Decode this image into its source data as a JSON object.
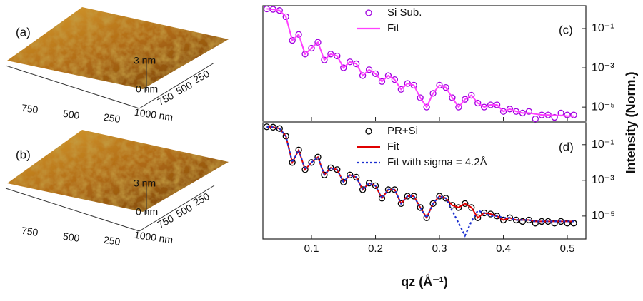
{
  "afm_panels": [
    {
      "label": "(a)",
      "z_ticks": [
        "3 nm",
        "0 nm"
      ],
      "x_ticks": [
        "750",
        "500",
        "250",
        "1000 nm"
      ],
      "y_ticks": [
        "750",
        "500",
        "250"
      ]
    },
    {
      "label": "(b)",
      "z_ticks": [
        "3 nm",
        "0 nm"
      ],
      "x_ticks": [
        "750",
        "500",
        "250",
        "1000 nm"
      ],
      "y_ticks": [
        "750",
        "500",
        "250"
      ]
    }
  ],
  "figure": {
    "x_label": "qz (Å⁻¹)",
    "y_label": "Intensity (Norm.)"
  },
  "chart_data": [
    {
      "type": "scatter",
      "panel_label": "(c)",
      "log_y": true,
      "legend": "upper center",
      "x_tick_labels": false,
      "x": [
        0.03,
        0.04,
        0.05,
        0.06,
        0.07,
        0.08,
        0.09,
        0.1,
        0.11,
        0.12,
        0.13,
        0.14,
        0.15,
        0.16,
        0.17,
        0.18,
        0.19,
        0.2,
        0.21,
        0.22,
        0.23,
        0.24,
        0.25,
        0.26,
        0.27,
        0.28,
        0.29,
        0.3,
        0.31,
        0.32,
        0.33,
        0.34,
        0.35,
        0.36,
        0.37,
        0.38,
        0.39,
        0.4,
        0.41,
        0.42,
        0.43,
        0.44,
        0.45,
        0.46,
        0.47,
        0.48,
        0.49,
        0.5,
        0.51
      ],
      "series": [
        {
          "name": "Si Sub.",
          "color": "#a000e0",
          "style": "markers",
          "values": [
            1,
            0.95,
            0.83,
            0.4,
            0.025,
            0.05,
            0.005,
            0.01,
            0.02,
            0.0025,
            0.005,
            0.004,
            0.001,
            0.002,
            0.0016,
            0.0004,
            0.0008,
            0.0005,
            0.0002,
            0.0004,
            0.00025,
            8e-05,
            0.00016,
            0.00013,
            3e-05,
            1e-05,
            5e-05,
            0.00013,
            0.0001,
            3e-05,
            1e-05,
            2.5e-05,
            4e-05,
            1.6e-05,
            1e-05,
            1.3e-05,
            1.3e-05,
            6e-06,
            8e-06,
            6e-06,
            5e-06,
            6e-06,
            2.5e-06,
            4e-06,
            4e-06,
            3e-06,
            5e-06,
            4e-06,
            4e-06
          ]
        },
        {
          "name": "Fit",
          "color": "#ff40ff",
          "style": "line",
          "values": [
            1,
            0.95,
            0.83,
            0.4,
            0.025,
            0.05,
            0.005,
            0.01,
            0.02,
            0.0025,
            0.005,
            0.004,
            0.001,
            0.002,
            0.0016,
            0.0004,
            0.0008,
            0.0005,
            0.0002,
            0.0004,
            0.00025,
            8e-05,
            0.00016,
            0.00013,
            3e-05,
            1e-05,
            5e-05,
            0.00013,
            0.0001,
            3e-05,
            1e-05,
            2.5e-05,
            4e-05,
            1.6e-05,
            1e-05,
            1.3e-05,
            1.3e-05,
            6e-06,
            8e-06,
            6e-06,
            5e-06,
            5e-06,
            4.5e-06,
            4e-06,
            4e-06,
            3.8e-06,
            3.8e-06,
            3.5e-06,
            3.5e-06
          ]
        }
      ],
      "xlim": [
        0.024,
        0.529
      ],
      "xticks": [
        0.1,
        0.2,
        0.3,
        0.4,
        0.5
      ],
      "ylim": [
        1.45,
        1.9e-06
      ],
      "yticks": [
        {
          "value": 0.1,
          "label": "10⁻¹"
        },
        {
          "value": 0.001,
          "label": "10⁻³"
        },
        {
          "value": 1e-05,
          "label": "10⁻⁵"
        }
      ]
    },
    {
      "type": "scatter",
      "panel_label": "(d)",
      "log_y": true,
      "legend": "upper center",
      "x_tick_labels": true,
      "x": [
        0.03,
        0.04,
        0.05,
        0.06,
        0.07,
        0.08,
        0.09,
        0.1,
        0.11,
        0.12,
        0.13,
        0.14,
        0.15,
        0.16,
        0.17,
        0.18,
        0.19,
        0.2,
        0.21,
        0.22,
        0.23,
        0.24,
        0.25,
        0.26,
        0.27,
        0.28,
        0.29,
        0.3,
        0.31,
        0.32,
        0.33,
        0.34,
        0.35,
        0.36,
        0.37,
        0.38,
        0.39,
        0.4,
        0.41,
        0.42,
        0.43,
        0.44,
        0.45,
        0.46,
        0.47,
        0.48,
        0.49,
        0.5,
        0.51
      ],
      "series": [
        {
          "name": "PR+Si",
          "color": "#000000",
          "style": "markers",
          "values": [
            1,
            0.95,
            0.8,
            0.3,
            0.01,
            0.05,
            0.004,
            0.01,
            0.02,
            0.002,
            0.005,
            0.004,
            0.0008,
            0.002,
            0.0015,
            0.0003,
            0.0007,
            0.0005,
            0.0001,
            0.0003,
            0.0003,
            5e-05,
            0.00013,
            0.00013,
            3e-05,
            8e-06,
            5e-05,
            0.00013,
            0.0001,
            4e-05,
            3e-05,
            5e-05,
            3e-05,
            8e-06,
            1.5e-05,
            1.3e-05,
            1e-05,
            6e-06,
            8e-06,
            6e-06,
            5e-06,
            6e-06,
            4e-06,
            5e-06,
            5e-06,
            4e-06,
            5e-06,
            4e-06,
            4e-06
          ]
        },
        {
          "name": "Fit",
          "color": "#e00000",
          "style": "line",
          "values": [
            1,
            0.95,
            0.8,
            0.3,
            0.01,
            0.05,
            0.004,
            0.01,
            0.02,
            0.002,
            0.005,
            0.004,
            0.0008,
            0.002,
            0.0015,
            0.0003,
            0.0007,
            0.0005,
            0.0001,
            0.0003,
            0.0003,
            5e-05,
            0.00013,
            0.00013,
            3e-05,
            8e-06,
            5e-05,
            0.00013,
            0.0001,
            4e-05,
            3e-05,
            5e-05,
            3e-05,
            8e-06,
            1.5e-05,
            1.3e-05,
            1e-05,
            6e-06,
            8e-06,
            6e-06,
            6e-06,
            6e-06,
            5e-06,
            5e-06,
            5e-06,
            5e-06,
            5e-06,
            5e-06,
            5e-06
          ]
        },
        {
          "name": "Fit with sigma = 4.2Å",
          "color": "#1a2fd0",
          "style": "dotted",
          "values": [
            1,
            0.95,
            0.8,
            0.3,
            0.01,
            0.05,
            0.004,
            0.01,
            0.02,
            0.002,
            0.005,
            0.004,
            0.0008,
            0.002,
            0.0015,
            0.0003,
            0.0007,
            0.0005,
            0.0001,
            0.0003,
            0.0003,
            5e-05,
            0.00013,
            0.00013,
            3e-05,
            8e-06,
            5e-05,
            0.00013,
            0.0001,
            2e-05,
            4e-06,
            8e-07,
            5e-06,
            2e-05,
            1.5e-05,
            1e-05,
            1e-05,
            8e-06,
            8e-06,
            6e-06,
            6e-06,
            6e-06,
            5e-06,
            5e-06,
            5e-06,
            5e-06,
            5e-06,
            5e-06,
            5e-06
          ]
        }
      ],
      "xlim": [
        0.024,
        0.529
      ],
      "xticks": [
        0.1,
        0.2,
        0.3,
        0.4,
        0.5
      ],
      "ylim": [
        1.7,
        5.2e-07
      ],
      "yticks": [
        {
          "value": 0.1,
          "label": "10⁻¹"
        },
        {
          "value": 0.001,
          "label": "10⁻³"
        },
        {
          "value": 1e-05,
          "label": "10⁻⁵"
        }
      ]
    }
  ]
}
